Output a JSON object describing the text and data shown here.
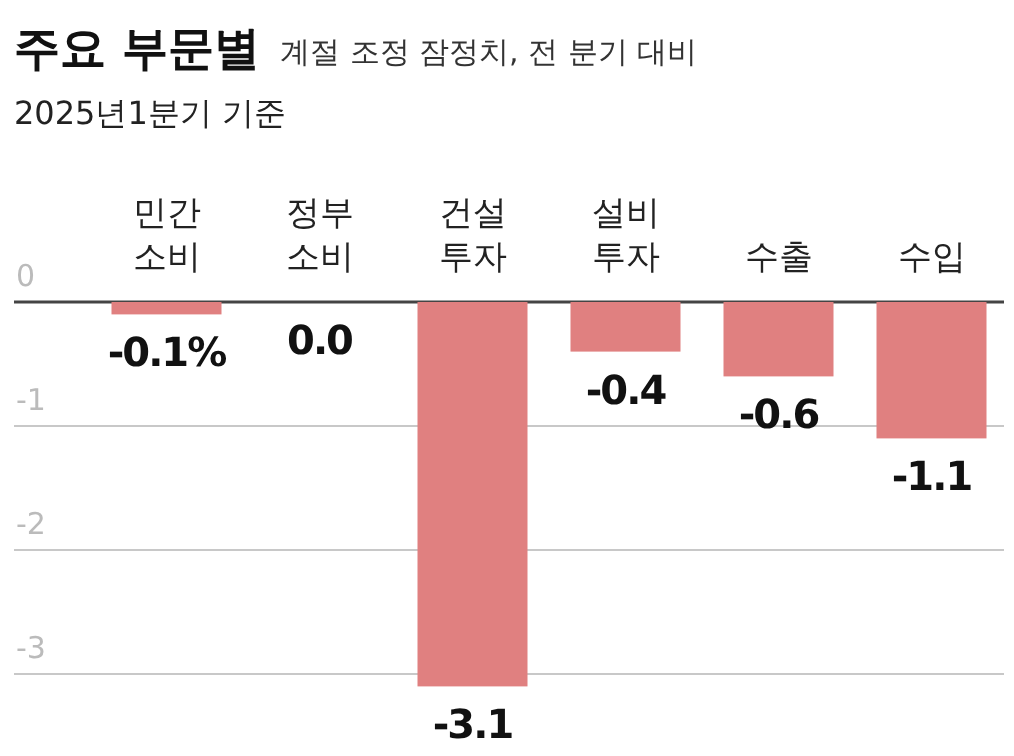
{
  "chart_data": {
    "type": "bar",
    "title": "주요 부문별",
    "subtitle": "계절 조정 잠정치, 전 분기 대비",
    "annotations": [
      "2025년1분기 기준"
    ],
    "categories": [
      "민간\n소비",
      "정부\n소비",
      "건설\n투자",
      "설비\n투자",
      "수출",
      "수입"
    ],
    "values": [
      -0.1,
      0.0,
      -3.1,
      -0.4,
      -0.6,
      -1.1
    ],
    "value_labels": [
      "-0.1%",
      "0.0",
      "-3.1",
      "-0.4",
      "-0.6",
      "-1.1"
    ],
    "color": "#e08080",
    "ylim": [
      -3.1,
      0
    ],
    "yticks": [
      0,
      -1,
      -2,
      -3
    ],
    "grid": "y"
  }
}
